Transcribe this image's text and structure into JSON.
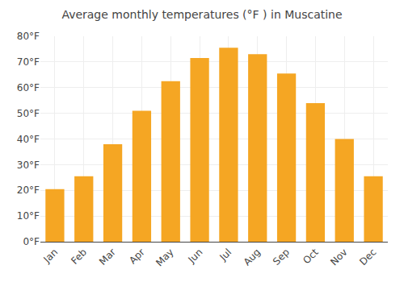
{
  "chart_data": {
    "type": "bar",
    "title": "Average monthly temperatures (°F ) in Muscatine",
    "categories": [
      "Jan",
      "Feb",
      "Mar",
      "Apr",
      "May",
      "Jun",
      "Jul",
      "Aug",
      "Sep",
      "Oct",
      "Nov",
      "Dec"
    ],
    "values": [
      20.5,
      25.5,
      38,
      51,
      62.5,
      71.5,
      75.5,
      73,
      65.5,
      54,
      40,
      25.5
    ],
    "color": "#F5A623",
    "ylim": [
      0,
      80
    ],
    "yticks": [
      {
        "value": 0,
        "label": "0°F"
      },
      {
        "value": 10,
        "label": "10°F"
      },
      {
        "value": 20,
        "label": "20°F"
      },
      {
        "value": 30,
        "label": "30°F"
      },
      {
        "value": 40,
        "label": "40°F"
      },
      {
        "value": 50,
        "label": "50°F"
      },
      {
        "value": 60,
        "label": "60°F"
      },
      {
        "value": 70,
        "label": "70°F"
      },
      {
        "value": 80,
        "label": "80°F"
      }
    ],
    "grid": true
  }
}
